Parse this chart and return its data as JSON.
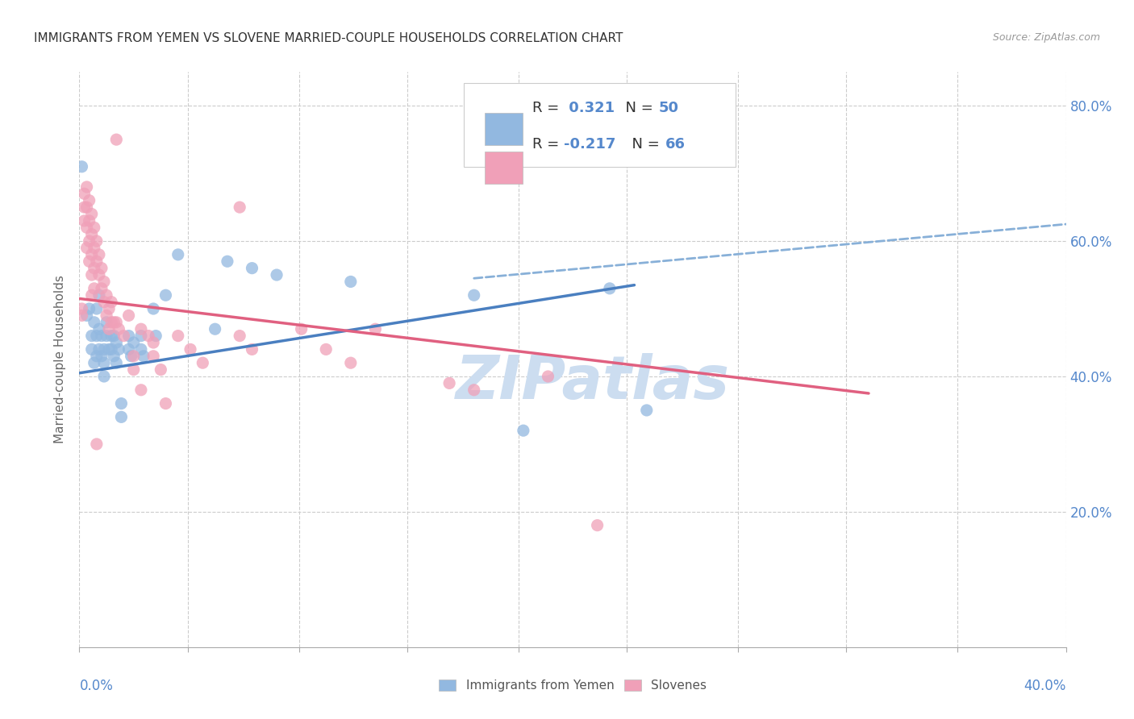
{
  "title": "IMMIGRANTS FROM YEMEN VS SLOVENE MARRIED-COUPLE HOUSEHOLDS CORRELATION CHART",
  "source": "Source: ZipAtlas.com",
  "ylabel": "Married-couple Households",
  "blue_color": "#92b8e0",
  "pink_color": "#f0a0b8",
  "trend_blue": "#4a7fc0",
  "trend_pink": "#e06080",
  "trend_dashed_blue": "#88b0d8",
  "axis_label_color": "#5588cc",
  "watermark_color": "#ccddf0",
  "background": "#ffffff",
  "grid_color": "#cccccc",
  "xlim": [
    0.0,
    0.4
  ],
  "ylim": [
    0.0,
    0.85
  ],
  "yticks": [
    0.2,
    0.4,
    0.6,
    0.8
  ],
  "ytick_labels": [
    "20.0%",
    "40.0%",
    "60.0%",
    "80.0%"
  ],
  "xticks": [
    0.0,
    0.044,
    0.089,
    0.133,
    0.178,
    0.222,
    0.267,
    0.311,
    0.356,
    0.4
  ],
  "blue_points": [
    [
      0.001,
      0.71
    ],
    [
      0.003,
      0.49
    ],
    [
      0.004,
      0.5
    ],
    [
      0.005,
      0.46
    ],
    [
      0.005,
      0.44
    ],
    [
      0.006,
      0.48
    ],
    [
      0.006,
      0.42
    ],
    [
      0.007,
      0.5
    ],
    [
      0.007,
      0.46
    ],
    [
      0.007,
      0.43
    ],
    [
      0.008,
      0.52
    ],
    [
      0.008,
      0.47
    ],
    [
      0.008,
      0.44
    ],
    [
      0.009,
      0.46
    ],
    [
      0.009,
      0.43
    ],
    [
      0.01,
      0.44
    ],
    [
      0.01,
      0.42
    ],
    [
      0.01,
      0.4
    ],
    [
      0.011,
      0.48
    ],
    [
      0.011,
      0.46
    ],
    [
      0.012,
      0.44
    ],
    [
      0.013,
      0.46
    ],
    [
      0.013,
      0.44
    ],
    [
      0.014,
      0.46
    ],
    [
      0.014,
      0.43
    ],
    [
      0.015,
      0.45
    ],
    [
      0.015,
      0.42
    ],
    [
      0.016,
      0.44
    ],
    [
      0.017,
      0.36
    ],
    [
      0.017,
      0.34
    ],
    [
      0.02,
      0.46
    ],
    [
      0.02,
      0.44
    ],
    [
      0.021,
      0.43
    ],
    [
      0.022,
      0.45
    ],
    [
      0.025,
      0.46
    ],
    [
      0.025,
      0.44
    ],
    [
      0.026,
      0.43
    ],
    [
      0.03,
      0.5
    ],
    [
      0.031,
      0.46
    ],
    [
      0.035,
      0.52
    ],
    [
      0.04,
      0.58
    ],
    [
      0.055,
      0.47
    ],
    [
      0.06,
      0.57
    ],
    [
      0.07,
      0.56
    ],
    [
      0.08,
      0.55
    ],
    [
      0.11,
      0.54
    ],
    [
      0.16,
      0.52
    ],
    [
      0.18,
      0.32
    ],
    [
      0.215,
      0.53
    ],
    [
      0.23,
      0.35
    ]
  ],
  "pink_points": [
    [
      0.001,
      0.5
    ],
    [
      0.001,
      0.49
    ],
    [
      0.002,
      0.67
    ],
    [
      0.002,
      0.65
    ],
    [
      0.002,
      0.63
    ],
    [
      0.003,
      0.68
    ],
    [
      0.003,
      0.65
    ],
    [
      0.003,
      0.62
    ],
    [
      0.003,
      0.59
    ],
    [
      0.004,
      0.66
    ],
    [
      0.004,
      0.63
    ],
    [
      0.004,
      0.6
    ],
    [
      0.004,
      0.57
    ],
    [
      0.005,
      0.64
    ],
    [
      0.005,
      0.61
    ],
    [
      0.005,
      0.58
    ],
    [
      0.005,
      0.55
    ],
    [
      0.005,
      0.52
    ],
    [
      0.006,
      0.62
    ],
    [
      0.006,
      0.59
    ],
    [
      0.006,
      0.56
    ],
    [
      0.006,
      0.53
    ],
    [
      0.007,
      0.6
    ],
    [
      0.007,
      0.57
    ],
    [
      0.007,
      0.3
    ],
    [
      0.008,
      0.58
    ],
    [
      0.008,
      0.55
    ],
    [
      0.009,
      0.56
    ],
    [
      0.009,
      0.53
    ],
    [
      0.01,
      0.54
    ],
    [
      0.01,
      0.51
    ],
    [
      0.011,
      0.52
    ],
    [
      0.011,
      0.49
    ],
    [
      0.012,
      0.5
    ],
    [
      0.012,
      0.47
    ],
    [
      0.013,
      0.51
    ],
    [
      0.013,
      0.48
    ],
    [
      0.014,
      0.48
    ],
    [
      0.015,
      0.75
    ],
    [
      0.015,
      0.48
    ],
    [
      0.016,
      0.47
    ],
    [
      0.018,
      0.46
    ],
    [
      0.02,
      0.49
    ],
    [
      0.022,
      0.43
    ],
    [
      0.022,
      0.41
    ],
    [
      0.025,
      0.47
    ],
    [
      0.025,
      0.38
    ],
    [
      0.028,
      0.46
    ],
    [
      0.03,
      0.45
    ],
    [
      0.03,
      0.43
    ],
    [
      0.033,
      0.41
    ],
    [
      0.035,
      0.36
    ],
    [
      0.04,
      0.46
    ],
    [
      0.045,
      0.44
    ],
    [
      0.05,
      0.42
    ],
    [
      0.065,
      0.65
    ],
    [
      0.065,
      0.46
    ],
    [
      0.07,
      0.44
    ],
    [
      0.09,
      0.47
    ],
    [
      0.1,
      0.44
    ],
    [
      0.11,
      0.42
    ],
    [
      0.12,
      0.47
    ],
    [
      0.15,
      0.39
    ],
    [
      0.16,
      0.38
    ],
    [
      0.19,
      0.4
    ],
    [
      0.21,
      0.18
    ]
  ],
  "trend_blue_x0": 0.0,
  "trend_blue_x1": 0.225,
  "trend_blue_y0": 0.405,
  "trend_blue_y1": 0.535,
  "trend_pink_x0": 0.0,
  "trend_pink_x1": 0.32,
  "trend_pink_y0": 0.515,
  "trend_pink_y1": 0.375,
  "trend_dashed_x0": 0.16,
  "trend_dashed_x1": 0.4,
  "trend_dashed_y0": 0.545,
  "trend_dashed_y1": 0.625
}
